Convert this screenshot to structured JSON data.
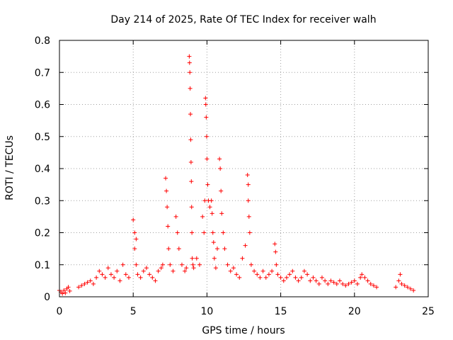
{
  "chart_data": {
    "type": "scatter",
    "title": "Day 214 of 2025, Rate Of TEC Index for receiver walh",
    "xlabel": "GPS time / hours",
    "ylabel": "ROTI / TECUs",
    "xlim": [
      0,
      25
    ],
    "ylim": [
      0,
      0.8
    ],
    "grid": true,
    "marker": "+",
    "series_color": "#ff0000",
    "xticks": [
      0,
      5,
      10,
      15,
      20,
      25
    ],
    "xtick_labels": [
      "0",
      "5",
      "10",
      "15",
      "20",
      "25"
    ],
    "yticks": [
      0,
      0.1,
      0.2,
      0.3,
      0.4,
      0.5,
      0.6,
      0.7,
      0.8
    ],
    "ytick_labels": [
      "0",
      "0.1",
      "0.2",
      "0.3",
      "0.4",
      "0.5",
      "0.6",
      "0.7",
      "0.8"
    ],
    "series": [
      {
        "name": "ROTI",
        "x": [
          0.0,
          0.1,
          0.2,
          0.3,
          0.4,
          0.5,
          0.6,
          0.7,
          1.3,
          1.5,
          1.7,
          1.9,
          2.1,
          2.3,
          2.5,
          2.7,
          2.9,
          3.1,
          3.3,
          3.5,
          3.7,
          3.9,
          4.1,
          4.3,
          4.5,
          4.7,
          5.0,
          5.1,
          5.1,
          5.2,
          5.2,
          5.3,
          5.5,
          5.7,
          5.9,
          6.1,
          6.3,
          6.5,
          6.7,
          6.9,
          7.0,
          7.2,
          7.25,
          7.3,
          7.35,
          7.4,
          7.5,
          7.7,
          7.9,
          8.0,
          8.1,
          8.3,
          8.5,
          8.6,
          8.8,
          8.82,
          8.84,
          8.86,
          8.88,
          8.9,
          8.92,
          8.94,
          8.96,
          8.98,
          9.0,
          9.05,
          9.1,
          9.3,
          9.5,
          9.7,
          9.8,
          9.85,
          9.9,
          9.92,
          9.95,
          9.98,
          10.0,
          10.05,
          10.1,
          10.2,
          10.3,
          10.35,
          10.4,
          10.45,
          10.5,
          10.6,
          10.7,
          10.85,
          10.9,
          10.95,
          11.0,
          11.1,
          11.2,
          11.4,
          11.6,
          11.8,
          12.0,
          12.2,
          12.4,
          12.6,
          12.75,
          12.8,
          12.8,
          12.85,
          12.9,
          13.0,
          13.2,
          13.4,
          13.6,
          13.8,
          14.0,
          14.2,
          14.4,
          14.6,
          14.65,
          14.7,
          14.8,
          15.0,
          15.2,
          15.4,
          15.6,
          15.8,
          16.0,
          16.2,
          16.4,
          16.6,
          16.8,
          17.0,
          17.2,
          17.4,
          17.6,
          17.8,
          18.0,
          18.2,
          18.4,
          18.6,
          18.8,
          19.0,
          19.2,
          19.4,
          19.6,
          19.8,
          20.0,
          20.2,
          20.4,
          20.5,
          20.7,
          20.9,
          21.1,
          21.3,
          21.5,
          22.8,
          23.0,
          23.1,
          23.2,
          23.4,
          23.6,
          23.8,
          24.0
        ],
        "y": [
          0.02,
          0.015,
          0.01,
          0.02,
          0.012,
          0.025,
          0.03,
          0.018,
          0.03,
          0.035,
          0.04,
          0.045,
          0.05,
          0.04,
          0.06,
          0.08,
          0.07,
          0.06,
          0.09,
          0.07,
          0.06,
          0.08,
          0.05,
          0.1,
          0.07,
          0.06,
          0.24,
          0.2,
          0.15,
          0.18,
          0.1,
          0.07,
          0.06,
          0.08,
          0.09,
          0.07,
          0.06,
          0.05,
          0.08,
          0.09,
          0.1,
          0.37,
          0.33,
          0.28,
          0.22,
          0.15,
          0.1,
          0.08,
          0.25,
          0.2,
          0.15,
          0.1,
          0.08,
          0.09,
          0.75,
          0.73,
          0.7,
          0.65,
          0.57,
          0.49,
          0.42,
          0.36,
          0.28,
          0.2,
          0.12,
          0.1,
          0.09,
          0.12,
          0.1,
          0.25,
          0.2,
          0.3,
          0.62,
          0.6,
          0.56,
          0.5,
          0.43,
          0.35,
          0.3,
          0.28,
          0.3,
          0.26,
          0.2,
          0.17,
          0.12,
          0.09,
          0.15,
          0.43,
          0.4,
          0.33,
          0.26,
          0.2,
          0.15,
          0.1,
          0.08,
          0.09,
          0.07,
          0.06,
          0.12,
          0.16,
          0.38,
          0.35,
          0.3,
          0.25,
          0.2,
          0.1,
          0.08,
          0.07,
          0.06,
          0.08,
          0.06,
          0.07,
          0.08,
          0.165,
          0.14,
          0.1,
          0.07,
          0.06,
          0.05,
          0.06,
          0.07,
          0.08,
          0.06,
          0.05,
          0.06,
          0.08,
          0.07,
          0.05,
          0.06,
          0.05,
          0.04,
          0.06,
          0.05,
          0.04,
          0.05,
          0.045,
          0.04,
          0.05,
          0.04,
          0.035,
          0.04,
          0.045,
          0.05,
          0.04,
          0.06,
          0.07,
          0.06,
          0.05,
          0.04,
          0.035,
          0.03,
          0.03,
          0.05,
          0.07,
          0.04,
          0.035,
          0.03,
          0.025,
          0.02
        ]
      }
    ]
  }
}
